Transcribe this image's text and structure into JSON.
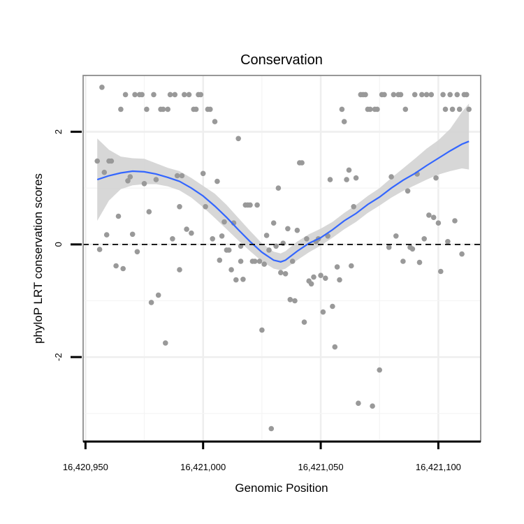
{
  "chart_data": {
    "type": "scatter",
    "title": "Conservation",
    "xlabel": "Genomic Position",
    "ylabel": "phyloP LRT conservation scores",
    "xlim": [
      16420949,
      16421118
    ],
    "ylim": [
      -3.5,
      3.0
    ],
    "x_ticks": [
      16420950,
      16421000,
      16421050,
      16421100
    ],
    "x_tick_labels": [
      "16,420,950",
      "16,421,000",
      "16,421,050",
      "16,421,100"
    ],
    "y_ticks": [
      -2,
      0,
      2
    ],
    "y_tick_labels": [
      "-2",
      "0",
      "2"
    ],
    "grid": true,
    "reference_line": {
      "y": 0,
      "style": "dashed"
    },
    "colors": {
      "points": "#999999",
      "smooth": "#3366ff",
      "band": "#d3d3d3",
      "panel_border": "#8c8c8c",
      "grid": "#eeeeee"
    },
    "points": [
      [
        16420955,
        1.48
      ],
      [
        16420956,
        -0.09
      ],
      [
        16420957,
        2.79
      ],
      [
        16420958,
        1.28
      ],
      [
        16420959,
        0.17
      ],
      [
        16420960,
        1.48
      ],
      [
        16420961,
        1.48
      ],
      [
        16420963,
        -0.38
      ],
      [
        16420964,
        0.5
      ],
      [
        16420965,
        2.4
      ],
      [
        16420966,
        -0.43
      ],
      [
        16420967,
        2.66
      ],
      [
        16420968,
        1.13
      ],
      [
        16420969,
        1.2
      ],
      [
        16420970,
        0.18
      ],
      [
        16420971,
        2.66
      ],
      [
        16420972,
        -0.13
      ],
      [
        16420973,
        2.66
      ],
      [
        16420974,
        2.66
      ],
      [
        16420975,
        1.08
      ],
      [
        16420976,
        2.4
      ],
      [
        16420977,
        0.58
      ],
      [
        16420978,
        -1.03
      ],
      [
        16420979,
        2.66
      ],
      [
        16420980,
        1.15
      ],
      [
        16420981,
        -0.9
      ],
      [
        16420982,
        2.4
      ],
      [
        16420983,
        2.4
      ],
      [
        16420984,
        -1.75
      ],
      [
        16420985,
        2.4
      ],
      [
        16420986,
        2.66
      ],
      [
        16420987,
        0.1
      ],
      [
        16420988,
        2.66
      ],
      [
        16420989,
        1.22
      ],
      [
        16420990,
        0.67
      ],
      [
        16420990,
        -0.45
      ],
      [
        16420991,
        1.22
      ],
      [
        16420992,
        2.66
      ],
      [
        16420993,
        0.27
      ],
      [
        16420994,
        2.66
      ],
      [
        16420995,
        0.2
      ],
      [
        16420996,
        2.4
      ],
      [
        16420997,
        2.4
      ],
      [
        16420998,
        2.66
      ],
      [
        16420999,
        2.66
      ],
      [
        16421000,
        1.26
      ],
      [
        16421001,
        0.67
      ],
      [
        16421002,
        2.4
      ],
      [
        16421003,
        2.4
      ],
      [
        16421004,
        0.1
      ],
      [
        16421005,
        2.18
      ],
      [
        16421006,
        1.12
      ],
      [
        16421007,
        -0.28
      ],
      [
        16421008,
        0.15
      ],
      [
        16421009,
        0.4
      ],
      [
        16421010,
        -0.1
      ],
      [
        16421011,
        -0.1
      ],
      [
        16421012,
        -0.45
      ],
      [
        16421013,
        0.38
      ],
      [
        16421014,
        -0.63
      ],
      [
        16421015,
        1.88
      ],
      [
        16421016,
        -0.03
      ],
      [
        16421016,
        -0.3
      ],
      [
        16421017,
        -0.62
      ],
      [
        16421018,
        0.7
      ],
      [
        16421019,
        0.7
      ],
      [
        16421020,
        0.7
      ],
      [
        16421021,
        -0.3
      ],
      [
        16421022,
        -0.3
      ],
      [
        16421023,
        0.7
      ],
      [
        16421024,
        -0.3
      ],
      [
        16421025,
        -1.52
      ],
      [
        16421026,
        -0.35
      ],
      [
        16421027,
        0.16
      ],
      [
        16421028,
        -0.1
      ],
      [
        16421029,
        -3.27
      ],
      [
        16421030,
        0.38
      ],
      [
        16421031,
        -0.03
      ],
      [
        16421032,
        1.0
      ],
      [
        16421033,
        -0.5
      ],
      [
        16421034,
        0.02
      ],
      [
        16421035,
        -0.52
      ],
      [
        16421036,
        0.28
      ],
      [
        16421037,
        -0.98
      ],
      [
        16421038,
        -0.3
      ],
      [
        16421039,
        -1.0
      ],
      [
        16421040,
        0.25
      ],
      [
        16421041,
        1.45
      ],
      [
        16421042,
        1.45
      ],
      [
        16421043,
        -1.38
      ],
      [
        16421044,
        0.1
      ],
      [
        16421045,
        -0.65
      ],
      [
        16421046,
        -0.7
      ],
      [
        16421047,
        -0.58
      ],
      [
        16421048,
        0.05
      ],
      [
        16421049,
        0.1
      ],
      [
        16421050,
        -0.55
      ],
      [
        16421051,
        -1.2
      ],
      [
        16421052,
        -0.6
      ],
      [
        16421053,
        0.15
      ],
      [
        16421054,
        1.15
      ],
      [
        16421055,
        -1.1
      ],
      [
        16421056,
        -1.82
      ],
      [
        16421057,
        -0.4
      ],
      [
        16421058,
        -0.63
      ],
      [
        16421059,
        2.4
      ],
      [
        16421060,
        2.18
      ],
      [
        16421061,
        1.15
      ],
      [
        16421062,
        1.32
      ],
      [
        16421063,
        -0.38
      ],
      [
        16421064,
        0.67
      ],
      [
        16421065,
        1.18
      ],
      [
        16421066,
        -2.82
      ],
      [
        16421067,
        2.66
      ],
      [
        16421068,
        2.66
      ],
      [
        16421069,
        2.66
      ],
      [
        16421070,
        2.4
      ],
      [
        16421071,
        2.4
      ],
      [
        16421072,
        -2.87
      ],
      [
        16421073,
        2.4
      ],
      [
        16421074,
        2.4
      ],
      [
        16421075,
        -2.23
      ],
      [
        16421076,
        2.66
      ],
      [
        16421077,
        2.66
      ],
      [
        16421079,
        -0.05
      ],
      [
        16421080,
        1.2
      ],
      [
        16421081,
        2.66
      ],
      [
        16421082,
        0.15
      ],
      [
        16421083,
        2.66
      ],
      [
        16421084,
        2.66
      ],
      [
        16421085,
        -0.3
      ],
      [
        16421086,
        2.4
      ],
      [
        16421087,
        0.95
      ],
      [
        16421088,
        -0.05
      ],
      [
        16421089,
        -0.08
      ],
      [
        16421090,
        2.66
      ],
      [
        16421091,
        1.25
      ],
      [
        16421092,
        -0.32
      ],
      [
        16421093,
        2.66
      ],
      [
        16421094,
        0.1
      ],
      [
        16421095,
        2.66
      ],
      [
        16421096,
        0.52
      ],
      [
        16421097,
        2.66
      ],
      [
        16421098,
        0.48
      ],
      [
        16421099,
        1.18
      ],
      [
        16421100,
        0.38
      ],
      [
        16421101,
        -0.48
      ],
      [
        16421102,
        2.66
      ],
      [
        16421103,
        2.4
      ],
      [
        16421104,
        0.05
      ],
      [
        16421105,
        2.66
      ],
      [
        16421106,
        2.4
      ],
      [
        16421107,
        0.42
      ],
      [
        16421108,
        2.66
      ],
      [
        16421109,
        2.4
      ],
      [
        16421110,
        -0.17
      ],
      [
        16421111,
        2.66
      ],
      [
        16421112,
        2.66
      ],
      [
        16421113,
        2.4
      ]
    ],
    "smooth_fit": {
      "x": [
        16420955,
        16420960,
        16420965,
        16420970,
        16420975,
        16420980,
        16420985,
        16420990,
        16420995,
        16421000,
        16421005,
        16421010,
        16421015,
        16421020,
        16421025,
        16421030,
        16421033,
        16421035,
        16421040,
        16421045,
        16421050,
        16421055,
        16421060,
        16421065,
        16421070,
        16421075,
        16421080,
        16421085,
        16421090,
        16421095,
        16421100,
        16421105,
        16421110,
        16421113
      ],
      "y": [
        1.15,
        1.22,
        1.27,
        1.3,
        1.29,
        1.25,
        1.19,
        1.12,
        1.0,
        0.86,
        0.68,
        0.48,
        0.26,
        0.05,
        -0.14,
        -0.28,
        -0.31,
        -0.28,
        -0.12,
        0.02,
        0.12,
        0.26,
        0.42,
        0.55,
        0.71,
        0.84,
        1.0,
        1.14,
        1.26,
        1.4,
        1.53,
        1.66,
        1.78,
        1.83
      ],
      "lower": [
        0.42,
        0.78,
        0.98,
        1.05,
        1.07,
        1.07,
        1.03,
        0.96,
        0.83,
        0.66,
        0.47,
        0.27,
        0.07,
        -0.12,
        -0.3,
        -0.43,
        -0.46,
        -0.43,
        -0.28,
        -0.14,
        -0.02,
        0.12,
        0.27,
        0.4,
        0.56,
        0.69,
        0.83,
        0.95,
        1.05,
        1.15,
        1.24,
        1.3,
        1.35,
        1.33
      ],
      "upper": [
        1.88,
        1.68,
        1.56,
        1.53,
        1.52,
        1.44,
        1.36,
        1.3,
        1.18,
        1.04,
        0.9,
        0.7,
        0.47,
        0.24,
        0.02,
        -0.13,
        -0.16,
        -0.12,
        0.05,
        0.18,
        0.28,
        0.4,
        0.56,
        0.7,
        0.86,
        1.0,
        1.18,
        1.35,
        1.52,
        1.7,
        1.85,
        2.05,
        2.35,
        2.5
      ]
    }
  }
}
